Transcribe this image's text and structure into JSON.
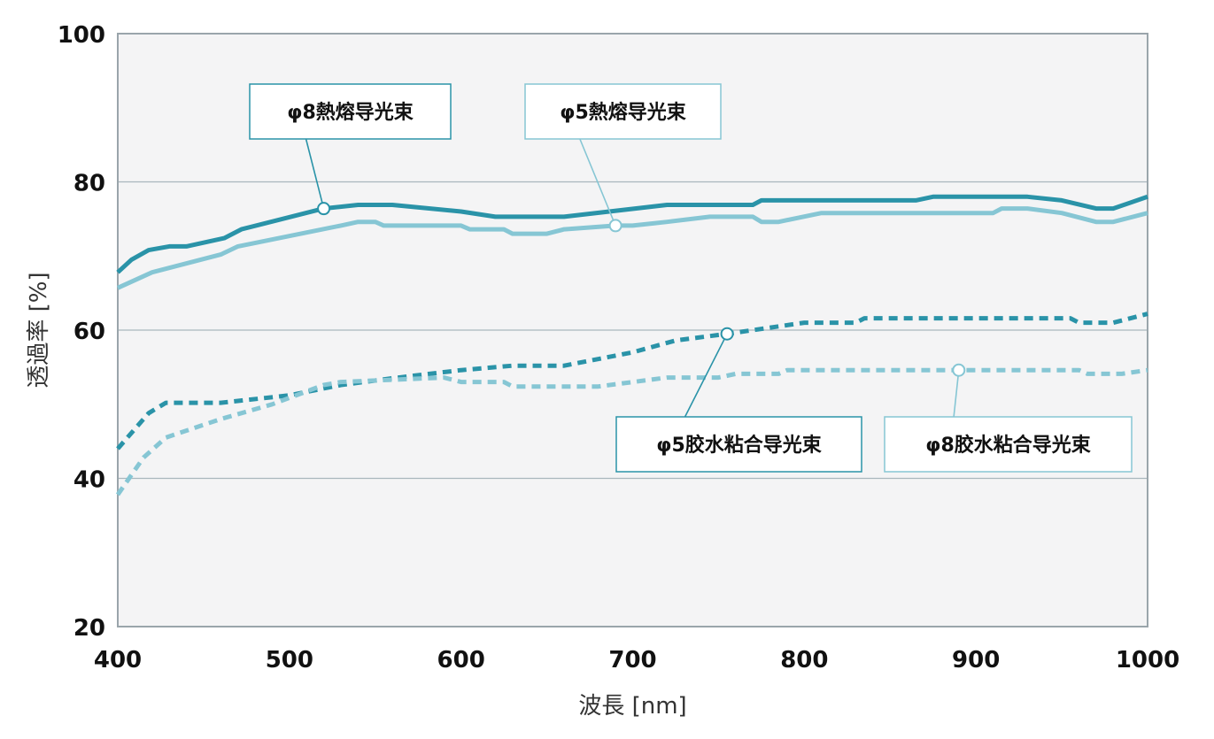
{
  "chart_data": {
    "type": "line",
    "xlabel": "波長 [nm]",
    "ylabel": "透過率 [%]",
    "xlim": [
      400,
      1000
    ],
    "ylim": [
      20,
      100
    ],
    "xticks": [
      400,
      500,
      600,
      700,
      800,
      900,
      1000
    ],
    "yticks": [
      20,
      40,
      60,
      80,
      100
    ],
    "grid": "horizontal",
    "series": [
      {
        "name": "φ8熱熔导光束",
        "style": "solid",
        "color": "#2a93a8",
        "x": [
          400,
          408,
          418,
          430,
          440,
          462,
          472,
          520,
          540,
          560,
          600,
          620,
          660,
          720,
          770,
          775,
          820,
          865,
          875,
          930,
          950,
          970,
          980,
          1000
        ],
        "y": [
          67.8,
          69.5,
          70.8,
          71.3,
          71.3,
          72.4,
          73.6,
          76.4,
          76.9,
          76.9,
          76.0,
          75.3,
          75.3,
          76.9,
          76.9,
          77.5,
          77.5,
          77.5,
          78.0,
          78.0,
          77.5,
          76.4,
          76.4,
          78.0
        ]
      },
      {
        "name": "φ5熱熔导光束",
        "style": "solid",
        "color": "#86c6d4",
        "x": [
          400,
          420,
          460,
          470,
          530,
          540,
          550,
          555,
          600,
          605,
          625,
          630,
          650,
          660,
          690,
          700,
          720,
          745,
          770,
          775,
          785,
          810,
          880,
          910,
          915,
          930,
          950,
          970,
          980,
          1000
        ],
        "y": [
          65.7,
          67.8,
          70.2,
          71.3,
          74.1,
          74.6,
          74.6,
          74.1,
          74.1,
          73.6,
          73.6,
          73.0,
          73.0,
          73.6,
          74.1,
          74.1,
          74.6,
          75.3,
          75.3,
          74.6,
          74.6,
          75.8,
          75.8,
          75.8,
          76.4,
          76.4,
          75.8,
          74.6,
          74.6,
          75.8
        ]
      },
      {
        "name": "φ5胶水粘合导光束",
        "style": "dashed",
        "color": "#2a93a8",
        "x": [
          400,
          418,
          428,
          460,
          500,
          530,
          560,
          600,
          630,
          660,
          700,
          725,
          755,
          770,
          800,
          830,
          835,
          955,
          960,
          980,
          1000
        ],
        "y": [
          44.0,
          48.8,
          50.2,
          50.2,
          51.2,
          52.6,
          53.5,
          54.6,
          55.2,
          55.2,
          57.0,
          58.6,
          59.5,
          60.0,
          61.0,
          61.0,
          61.6,
          61.6,
          61.0,
          61.0,
          62.2
        ]
      },
      {
        "name": "φ8胶水粘合导光束",
        "style": "dashed",
        "color": "#86c6d4",
        "x": [
          400,
          415,
          428,
          460,
          490,
          520,
          530,
          590,
          600,
          625,
          630,
          680,
          720,
          730,
          750,
          760,
          785,
          790,
          960,
          965,
          985,
          1000
        ],
        "y": [
          37.8,
          42.8,
          45.5,
          48.0,
          50.0,
          52.6,
          53.0,
          53.6,
          53.0,
          53.0,
          52.4,
          52.4,
          53.6,
          53.6,
          53.6,
          54.1,
          54.1,
          54.6,
          54.6,
          54.1,
          54.1,
          54.6
        ]
      }
    ],
    "annotations": [
      {
        "series": 0,
        "label": "φ8熱熔导光束",
        "point": [
          520,
          76.4
        ]
      },
      {
        "series": 1,
        "label": "φ5熱熔导光束",
        "point": [
          690,
          74.1
        ]
      },
      {
        "series": 2,
        "label": "φ5胶水粘合导光束",
        "point": [
          755,
          59.5
        ]
      },
      {
        "series": 3,
        "label": "φ8胶水粘合导光束",
        "point": [
          890,
          54.6
        ]
      }
    ]
  },
  "colors": {
    "plot_background": "#f4f4f5",
    "plot_border": "#9aa5ab",
    "grid": "#a9b7bd",
    "dark_teal": "#2a93a8",
    "light_teal": "#86c6d4"
  }
}
